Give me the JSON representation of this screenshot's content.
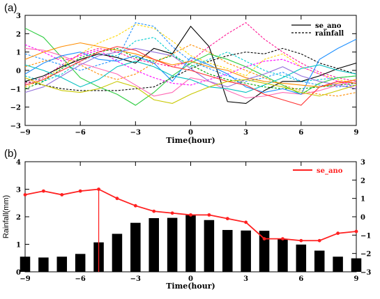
{
  "panels": {
    "a": {
      "label": "(a)"
    },
    "b": {
      "label": "(b)"
    }
  },
  "chart_data": [
    {
      "type": "line",
      "panel": "(a)",
      "xlabel": "Time(hour)",
      "ylabel": "",
      "xlim": [
        -9,
        9
      ],
      "ylim": [
        -3,
        3
      ],
      "xticks": [
        -9,
        -6,
        -3,
        0,
        3,
        6,
        9
      ],
      "yticks": [
        -3,
        -2,
        -1,
        0,
        1,
        2,
        3
      ],
      "legend": {
        "placement": "top-right",
        "entries": [
          {
            "name": "se_ano",
            "style": "solid"
          },
          {
            "name": "rainfall",
            "style": "dashed"
          }
        ]
      },
      "x": [
        -9,
        -8,
        -7,
        -6,
        -5,
        -4,
        -3,
        -2,
        -1,
        0,
        1,
        2,
        3,
        4,
        5,
        6,
        7,
        8,
        9
      ],
      "series_solid": [
        {
          "color": "#000000",
          "values": [
            -0.6,
            -0.3,
            0.2,
            0.6,
            0.9,
            0.7,
            0.4,
            1.2,
            0.9,
            2.4,
            1.3,
            -1.7,
            -1.8,
            -1.1,
            -0.6,
            -0.6,
            -0.3,
            0.1,
            0.4
          ]
        },
        {
          "color": "#2ecc40",
          "values": [
            2.3,
            1.8,
            0.7,
            -0.4,
            -0.9,
            -1.3,
            -1.9,
            -1.2,
            -0.3,
            0.4,
            0.9,
            0.6,
            0.2,
            -0.3,
            -0.8,
            -1.3,
            -0.7,
            -0.4,
            -0.3
          ]
        },
        {
          "color": "#ff69b4",
          "values": [
            1.2,
            1.1,
            0.8,
            0.4,
            0.1,
            -0.2,
            -0.8,
            -1.4,
            -1.2,
            -0.4,
            -0.6,
            -1.1,
            -1.5,
            -1.4,
            -1.2,
            -1.3,
            -1.1,
            -0.8,
            -0.5
          ]
        },
        {
          "color": "#1e90ff",
          "values": [
            -0.2,
            0.4,
            0.8,
            1.0,
            0.6,
            0.5,
            0.8,
            0.4,
            -0.6,
            0.7,
            0.3,
            -0.2,
            -0.9,
            -1.2,
            -1.0,
            -1.3,
            0.6,
            1.2,
            1.7
          ]
        },
        {
          "color": "#ff8c00",
          "values": [
            0.6,
            1.0,
            1.3,
            1.5,
            1.3,
            1.1,
            0.9,
            0.6,
            0.3,
            0.5,
            0.2,
            0.0,
            -0.4,
            -0.6,
            -0.7,
            -0.8,
            -0.9,
            -0.7,
            -0.5
          ]
        },
        {
          "color": "#9370db",
          "values": [
            -1.2,
            -0.9,
            -0.3,
            0.3,
            0.8,
            1.0,
            1.2,
            1.0,
            0.8,
            0.1,
            -0.6,
            -0.9,
            -0.5,
            -0.2,
            0.2,
            -0.3,
            -0.6,
            -0.8,
            -1.0
          ]
        },
        {
          "color": "#00bfbf",
          "values": [
            0.3,
            0.0,
            -0.4,
            -0.9,
            -0.5,
            0.2,
            0.5,
            0.2,
            -0.3,
            -0.5,
            -0.9,
            -1.0,
            -1.2,
            -0.8,
            -0.4,
            0.1,
            0.3,
            0.0,
            -0.2
          ]
        },
        {
          "color": "#ff3030",
          "values": [
            -0.8,
            -0.5,
            0.0,
            0.5,
            1.0,
            1.3,
            1.1,
            0.6,
            0.2,
            0.0,
            -0.3,
            -0.6,
            -0.8,
            -1.3,
            -1.6,
            -1.9,
            -0.9,
            -0.6,
            -0.7
          ]
        },
        {
          "color": "#c8c800",
          "values": [
            -0.4,
            -0.8,
            -1.1,
            -1.2,
            -1.0,
            -0.6,
            -0.9,
            -1.6,
            -1.8,
            -1.3,
            -0.9,
            -0.6,
            -0.5,
            -0.7,
            -0.9,
            -1.2,
            -1.4,
            -1.1,
            -0.8
          ]
        }
      ],
      "series_dashed": [
        {
          "color": "#000000",
          "values": [
            -0.6,
            -0.8,
            -1.0,
            -1.1,
            -1.1,
            -1.1,
            -1.0,
            -0.9,
            -0.4,
            0.1,
            0.5,
            0.8,
            1.0,
            0.9,
            1.2,
            0.9,
            0.4,
            0.1,
            -0.2
          ]
        },
        {
          "color": "#ffd700",
          "values": [
            -0.9,
            -0.5,
            0.2,
            0.9,
            1.5,
            1.9,
            2.5,
            2.3,
            1.6,
            0.8,
            0.4,
            0.1,
            -0.3,
            0.6,
            0.9,
            0.2,
            -0.2,
            -0.5,
            -0.7
          ]
        },
        {
          "color": "#ff1493",
          "values": [
            -0.7,
            -0.4,
            0.3,
            0.9,
            1.2,
            1.0,
            0.6,
            0.4,
            0.2,
            0.5,
            1.3,
            2.0,
            2.6,
            1.7,
            1.0,
            0.4,
            -0.1,
            -0.4,
            -0.6
          ]
        },
        {
          "color": "#1e90ff",
          "values": [
            0.9,
            0.6,
            0.3,
            0.0,
            0.3,
            0.6,
            2.6,
            2.4,
            1.3,
            0.5,
            0.1,
            -0.3,
            -0.6,
            -0.4,
            -0.1,
            -0.6,
            -0.8,
            -0.9,
            -0.8
          ]
        },
        {
          "color": "#00a000",
          "values": [
            -1.0,
            -0.6,
            0.1,
            0.7,
            1.0,
            1.2,
            0.7,
            0.5,
            0.8,
            0.3,
            -0.2,
            -0.5,
            -0.7,
            -0.9,
            -1.0,
            -1.0,
            -0.9,
            -0.8,
            -0.7
          ]
        },
        {
          "color": "#ff8c00",
          "values": [
            0.2,
            0.5,
            0.7,
            0.3,
            -0.2,
            -0.5,
            -0.2,
            0.4,
            0.9,
            1.4,
            1.0,
            0.4,
            0.0,
            -0.4,
            -0.8,
            -1.1,
            -1.3,
            -1.4,
            -1.2
          ]
        },
        {
          "color": "#ff00ff",
          "values": [
            1.4,
            1.0,
            0.5,
            0.8,
            1.1,
            0.5,
            0.0,
            -0.4,
            -0.7,
            -0.8,
            -0.5,
            -0.2,
            0.2,
            0.5,
            0.6,
            0.2,
            -0.2,
            -0.6,
            -0.9
          ]
        },
        {
          "color": "#00ced1",
          "values": [
            -0.3,
            -0.6,
            -0.2,
            0.5,
            0.9,
            0.8,
            1.6,
            1.8,
            0.9,
            0.2,
            0.6,
            1.0,
            0.5,
            0.0,
            -0.3,
            -0.6,
            -0.5,
            -0.4,
            -0.3
          ]
        }
      ]
    },
    {
      "type": "bar+line",
      "panel": "(b)",
      "xlabel": "Time(hour)",
      "ylabel": "Rainfall(mm)",
      "xlim": [
        -9,
        9
      ],
      "ylim": [
        0,
        4
      ],
      "y2lim": [
        -3,
        3
      ],
      "xticks": [
        -9,
        -6,
        -3,
        0,
        3,
        6,
        9
      ],
      "yticks": [
        0,
        1,
        2,
        3,
        4
      ],
      "y2ticks": [
        -3,
        -2,
        -1,
        0,
        1,
        2,
        3
      ],
      "legend": {
        "placement": "top-right",
        "entries": [
          {
            "name": "se_ano",
            "color": "#ff2020"
          }
        ]
      },
      "x": [
        -9,
        -8,
        -7,
        -6,
        -5,
        -4,
        -3,
        -2,
        -1,
        0,
        1,
        2,
        3,
        4,
        5,
        6,
        7,
        8,
        9
      ],
      "bars": {
        "name": "Rainfall(mm)",
        "color": "#000000",
        "values": [
          0.55,
          0.52,
          0.55,
          0.65,
          1.07,
          1.38,
          1.78,
          1.95,
          1.96,
          2.06,
          1.88,
          1.52,
          1.5,
          1.49,
          1.2,
          0.99,
          0.77,
          0.55,
          0.49
        ]
      },
      "line": {
        "name": "se_ano",
        "color": "#ff2020",
        "values": [
          1.2,
          1.4,
          1.2,
          1.4,
          1.5,
          1.0,
          0.6,
          0.3,
          0.2,
          0.1,
          0.1,
          -0.1,
          -0.3,
          -1.2,
          -1.2,
          -1.3,
          -1.3,
          -0.9,
          -0.8
        ]
      },
      "vertical_marker": {
        "x": -5,
        "color": "#ff2020"
      }
    }
  ]
}
